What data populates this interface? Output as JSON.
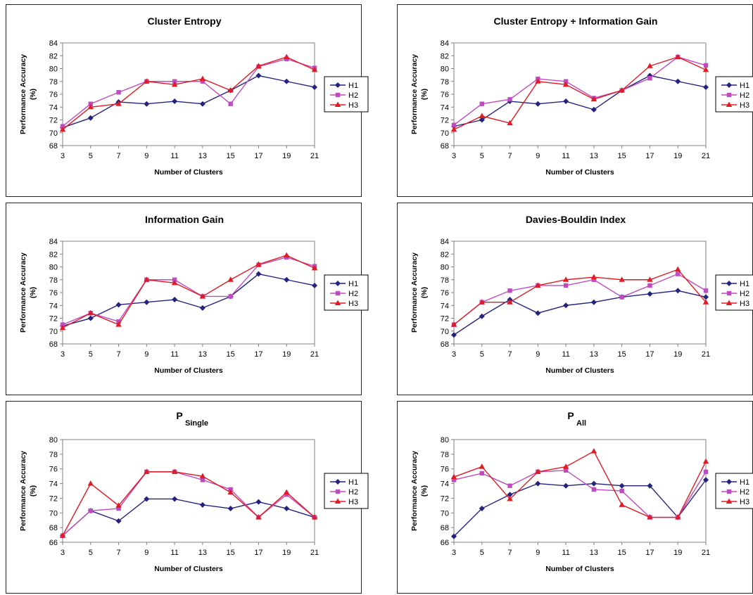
{
  "colors": {
    "H1": "#23227f",
    "H2": "#c04bc0",
    "H3": "#e01b24"
  },
  "chart_data": [
    {
      "type": "line",
      "title": "Cluster Entropy",
      "xlabel": "Number of Clusters",
      "ylabel": "Performance Accuracy (%)",
      "x": [
        3,
        5,
        7,
        9,
        11,
        13,
        15,
        17,
        19,
        21
      ],
      "ylim": [
        68,
        84
      ],
      "yticks": [
        68,
        70,
        72,
        74,
        76,
        78,
        80,
        82,
        84
      ],
      "legend": "right",
      "series": [
        {
          "name": "H1",
          "values": [
            70.8,
            72.3,
            74.8,
            74.5,
            74.9,
            74.5,
            76.6,
            78.9,
            78.0,
            77.1
          ]
        },
        {
          "name": "H2",
          "values": [
            71.0,
            74.5,
            76.3,
            78.0,
            78.0,
            78.0,
            74.5,
            80.3,
            81.5,
            80.1
          ]
        },
        {
          "name": "H3",
          "values": [
            70.5,
            74.0,
            74.5,
            78.0,
            77.5,
            78.4,
            76.6,
            80.4,
            81.8,
            79.8
          ]
        }
      ]
    },
    {
      "type": "line",
      "title": "Cluster Entropy + Information Gain",
      "xlabel": "Number of Clusters",
      "ylabel": "Performance Accuracy (%)",
      "x": [
        3,
        5,
        7,
        9,
        11,
        13,
        15,
        17,
        19,
        21
      ],
      "ylim": [
        68,
        84
      ],
      "yticks": [
        68,
        70,
        72,
        74,
        76,
        78,
        80,
        82,
        84
      ],
      "legend": "right",
      "series": [
        {
          "name": "H1",
          "values": [
            71.0,
            72.0,
            74.9,
            74.5,
            74.9,
            73.6,
            76.6,
            78.9,
            78.0,
            77.1
          ]
        },
        {
          "name": "H2",
          "values": [
            71.2,
            74.5,
            75.2,
            78.4,
            78.0,
            75.4,
            76.6,
            78.5,
            81.8,
            80.5
          ]
        },
        {
          "name": "H3",
          "values": [
            70.5,
            72.6,
            71.5,
            78.0,
            77.5,
            75.2,
            76.6,
            80.4,
            81.8,
            79.8
          ]
        }
      ]
    },
    {
      "type": "line",
      "title": "Information Gain",
      "xlabel": "Number of Clusters",
      "ylabel": "Performance Accuracy (%)",
      "x": [
        3,
        5,
        7,
        9,
        11,
        13,
        15,
        17,
        19,
        21
      ],
      "ylim": [
        68,
        84
      ],
      "yticks": [
        68,
        70,
        72,
        74,
        76,
        78,
        80,
        82,
        84
      ],
      "legend": "right",
      "series": [
        {
          "name": "H1",
          "values": [
            70.8,
            72.0,
            74.1,
            74.5,
            74.9,
            73.6,
            75.4,
            78.9,
            78.0,
            77.1
          ]
        },
        {
          "name": "H2",
          "values": [
            71.0,
            72.8,
            71.5,
            78.0,
            78.0,
            75.4,
            75.4,
            80.3,
            81.5,
            80.1
          ]
        },
        {
          "name": "H3",
          "values": [
            70.5,
            72.8,
            71.0,
            78.0,
            77.5,
            75.4,
            78.0,
            80.4,
            81.8,
            79.8
          ]
        }
      ]
    },
    {
      "type": "line",
      "title": "Davies-Bouldin Index",
      "xlabel": "Number of Clusters",
      "ylabel": "Performance Accuracy (%)",
      "x": [
        3,
        5,
        7,
        9,
        11,
        13,
        15,
        17,
        19,
        21
      ],
      "ylim": [
        68,
        84
      ],
      "yticks": [
        68,
        70,
        72,
        74,
        76,
        78,
        80,
        82,
        84
      ],
      "legend": "right",
      "series": [
        {
          "name": "H1",
          "values": [
            69.4,
            72.3,
            74.9,
            72.8,
            74.0,
            74.5,
            75.3,
            75.8,
            76.3,
            75.3
          ]
        },
        {
          "name": "H2",
          "values": [
            71.0,
            74.5,
            76.3,
            77.1,
            77.1,
            78.0,
            75.3,
            77.1,
            78.9,
            76.3
          ]
        },
        {
          "name": "H3",
          "values": [
            71.0,
            74.5,
            74.5,
            77.1,
            78.0,
            78.4,
            78.0,
            78.0,
            79.6,
            74.5
          ]
        }
      ]
    },
    {
      "type": "line",
      "title": "P",
      "title_sub": "Single",
      "xlabel": "Number of Clusters",
      "ylabel": "Performance Accuracy (%)",
      "x": [
        3,
        5,
        7,
        9,
        11,
        13,
        15,
        17,
        19,
        21
      ],
      "ylim": [
        66,
        80
      ],
      "yticks": [
        66,
        68,
        70,
        72,
        74,
        76,
        78,
        80
      ],
      "legend": "right",
      "series": [
        {
          "name": "H1",
          "values": [
            66.9,
            70.3,
            68.9,
            71.9,
            71.9,
            71.1,
            70.6,
            71.5,
            70.6,
            69.4
          ]
        },
        {
          "name": "H2",
          "values": [
            66.9,
            70.3,
            70.6,
            75.6,
            75.6,
            74.5,
            73.2,
            69.4,
            72.5,
            69.4
          ]
        },
        {
          "name": "H3",
          "values": [
            66.9,
            74.0,
            71.0,
            75.6,
            75.6,
            75.0,
            72.8,
            69.4,
            72.8,
            69.4
          ]
        }
      ]
    },
    {
      "type": "line",
      "title": "P",
      "title_sub": "All",
      "xlabel": "Number of Clusters",
      "ylabel": "Performance Accuracy (%)",
      "x": [
        3,
        5,
        7,
        9,
        11,
        13,
        15,
        17,
        19,
        21
      ],
      "ylim": [
        66,
        80
      ],
      "yticks": [
        66,
        68,
        70,
        72,
        74,
        76,
        78,
        80
      ],
      "legend": "right",
      "series": [
        {
          "name": "H1",
          "values": [
            66.8,
            70.6,
            72.5,
            74.0,
            73.7,
            74.0,
            73.7,
            73.7,
            69.4,
            74.5
          ]
        },
        {
          "name": "H2",
          "values": [
            74.5,
            75.4,
            73.7,
            75.6,
            75.8,
            73.2,
            73.0,
            69.4,
            69.4,
            75.6
          ]
        },
        {
          "name": "H3",
          "values": [
            74.9,
            76.3,
            71.9,
            75.6,
            76.3,
            78.4,
            71.1,
            69.4,
            69.4,
            77.0
          ]
        }
      ]
    }
  ]
}
